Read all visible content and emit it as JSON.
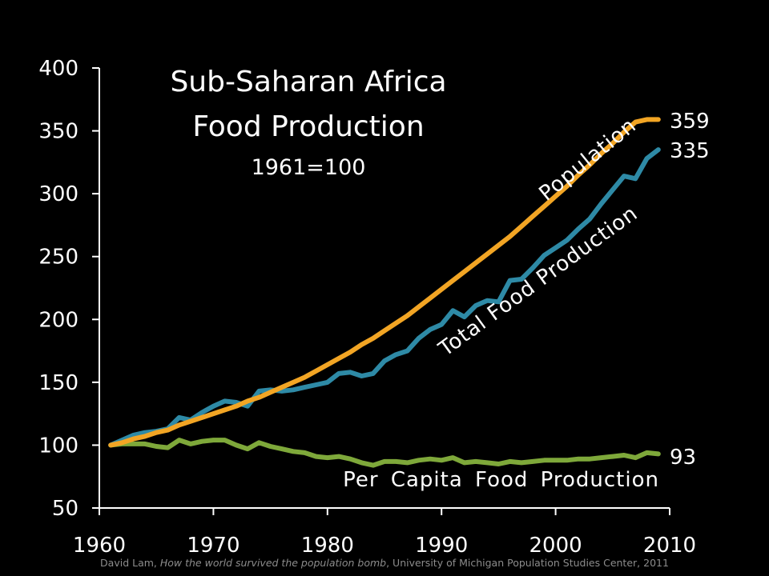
{
  "chart_data": {
    "type": "line",
    "title": "Sub-Saharan Africa",
    "title_line2": "Food Production",
    "subtitle": "1961=100",
    "xlim": [
      1960,
      2010
    ],
    "ylim": [
      50,
      400
    ],
    "x_ticks": [
      1960,
      1970,
      1980,
      1990,
      2000,
      2010
    ],
    "y_ticks": [
      50,
      100,
      150,
      200,
      250,
      300,
      350,
      400
    ],
    "grid": false,
    "x": [
      1961,
      1962,
      1963,
      1964,
      1965,
      1966,
      1967,
      1968,
      1969,
      1970,
      1971,
      1972,
      1973,
      1974,
      1975,
      1976,
      1977,
      1978,
      1979,
      1980,
      1981,
      1982,
      1983,
      1984,
      1985,
      1986,
      1987,
      1988,
      1989,
      1990,
      1991,
      1992,
      1993,
      1994,
      1995,
      1996,
      1997,
      1998,
      1999,
      2000,
      2001,
      2002,
      2003,
      2004,
      2005,
      2006,
      2007,
      2008,
      2009
    ],
    "series": [
      {
        "name": "Population",
        "color": "#f2a524",
        "values": [
          100,
          102,
          105,
          107,
          110,
          112,
          116,
          119,
          122,
          125,
          128,
          131,
          135,
          138,
          142,
          146,
          150,
          154,
          159,
          164,
          169,
          174,
          180,
          185,
          191,
          197,
          203,
          210,
          217,
          224,
          231,
          238,
          245,
          252,
          259,
          266,
          274,
          282,
          290,
          298,
          306,
          315,
          323,
          332,
          340,
          349,
          357,
          359,
          359
        ],
        "end_label": "359"
      },
      {
        "name": "Total Food Production",
        "color": "#2e8aa6",
        "values": [
          100,
          104,
          108,
          110,
          111,
          113,
          122,
          120,
          126,
          131,
          135,
          134,
          131,
          143,
          144,
          143,
          144,
          146,
          148,
          150,
          157,
          158,
          155,
          157,
          167,
          172,
          175,
          185,
          192,
          196,
          207,
          202,
          211,
          215,
          214,
          231,
          232,
          241,
          251,
          257,
          263,
          272,
          280,
          292,
          303,
          314,
          312,
          328,
          335
        ],
        "end_label": "335"
      },
      {
        "name": "Per Capita Food Production",
        "color": "#7ea83a",
        "values": [
          100,
          101,
          101,
          101,
          99,
          98,
          104,
          101,
          103,
          104,
          104,
          100,
          97,
          102,
          99,
          97,
          95,
          94,
          91,
          90,
          91,
          89,
          86,
          84,
          87,
          87,
          86,
          88,
          89,
          88,
          90,
          86,
          87,
          86,
          85,
          87,
          86,
          87,
          88,
          88,
          88,
          89,
          89,
          90,
          91,
          92,
          90,
          94,
          93
        ],
        "end_label": "93"
      }
    ],
    "citation_prefix": "David Lam, ",
    "citation_italic": "How the world survived the population bomb",
    "citation_suffix": ", University of Michigan Population Studies Center, 2011"
  }
}
